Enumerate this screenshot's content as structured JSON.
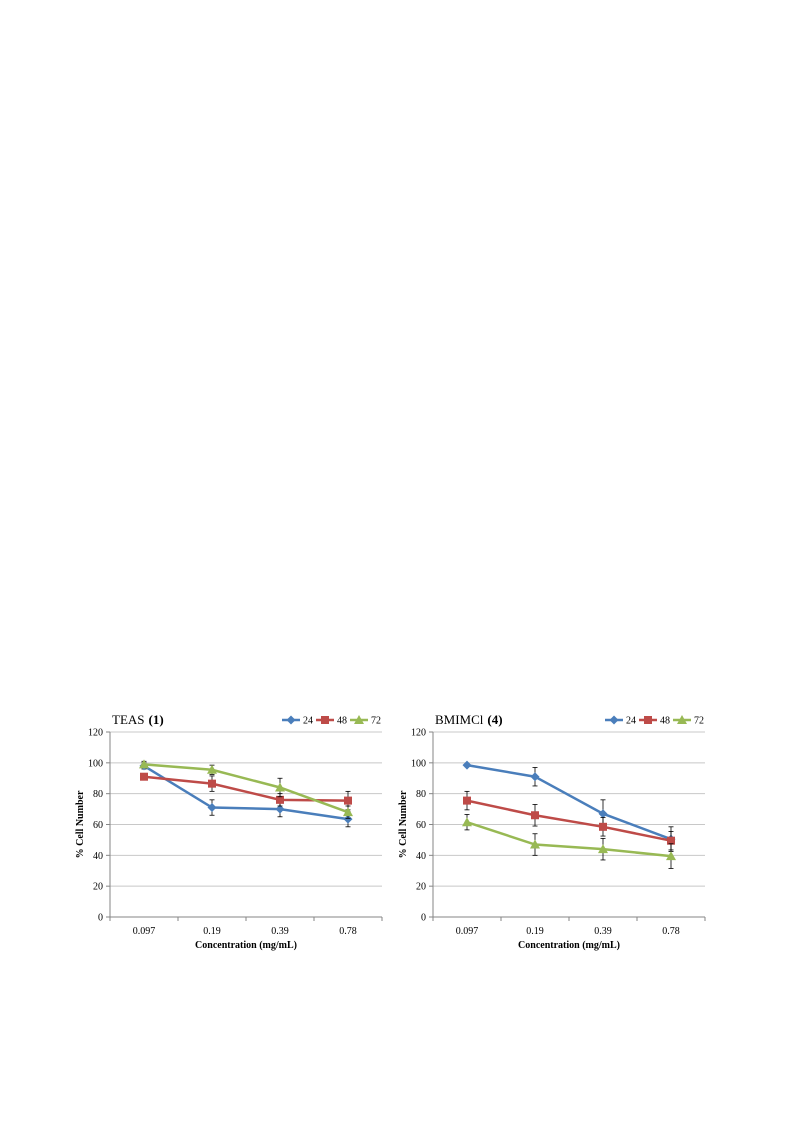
{
  "chart_data": [
    {
      "type": "line",
      "title": "TEAS",
      "title_suffix": "(1)",
      "xlabel": "Concentration (mg/mL)",
      "ylabel": "% Cell Number",
      "categories": [
        "0.097",
        "0.19",
        "0.39",
        "0.78"
      ],
      "ylim": [
        0,
        120
      ],
      "yticks": [
        0,
        20,
        40,
        60,
        80,
        100,
        120
      ],
      "grid": true,
      "legend": "top-right",
      "series": [
        {
          "name": "24",
          "color": "#4a7ebb",
          "marker": "diamond",
          "values": [
            98,
            71,
            70,
            63.5
          ],
          "errors": [
            2,
            5,
            5,
            5
          ]
        },
        {
          "name": "48",
          "color": "#be4b48",
          "marker": "square",
          "values": [
            91,
            86.5,
            76,
            75.5
          ],
          "errors": [
            2,
            5,
            4,
            6
          ]
        },
        {
          "name": "72",
          "color": "#98b954",
          "marker": "triangle",
          "values": [
            99,
            95.5,
            84,
            68
          ],
          "errors": [
            2,
            3,
            6,
            4
          ]
        }
      ]
    },
    {
      "type": "line",
      "title": "BMIMCl",
      "title_suffix": "(4)",
      "xlabel": "Concentration (mg/mL)",
      "ylabel": "% Cell Number",
      "categories": [
        "0.097",
        "0.19",
        "0.39",
        "0.78"
      ],
      "ylim": [
        0,
        120
      ],
      "yticks": [
        0,
        20,
        40,
        60,
        80,
        100,
        120
      ],
      "grid": true,
      "legend": "top-right",
      "series": [
        {
          "name": "24",
          "color": "#4a7ebb",
          "marker": "diamond",
          "values": [
            98.5,
            91,
            67,
            50.5
          ],
          "errors": [
            1,
            6,
            9,
            8
          ]
        },
        {
          "name": "48",
          "color": "#be4b48",
          "marker": "square",
          "values": [
            75.5,
            66,
            58.5,
            49.5
          ],
          "errors": [
            6,
            7,
            6,
            6
          ]
        },
        {
          "name": "72",
          "color": "#98b954",
          "marker": "triangle",
          "values": [
            61.5,
            47,
            44,
            39.5
          ],
          "errors": [
            5,
            7,
            7,
            8
          ]
        }
      ]
    }
  ]
}
